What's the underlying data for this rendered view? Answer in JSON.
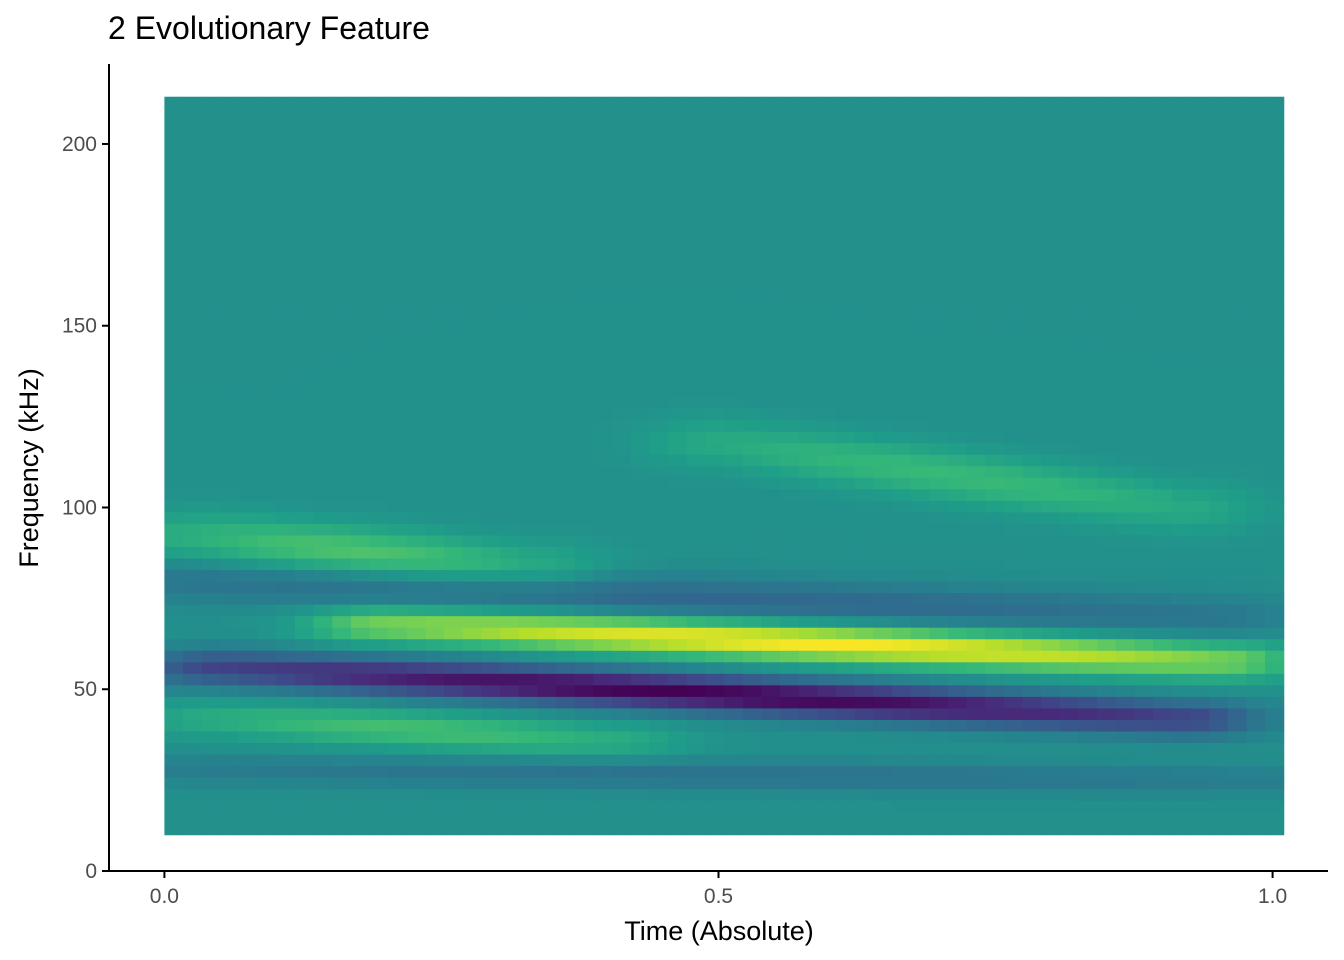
{
  "chart_data": {
    "type": "heatmap",
    "title": "2 Evolutionary Feature",
    "xlabel": "Time (Absolute)",
    "ylabel": "Frequency (kHz)",
    "xlim": [
      -0.05,
      1.05
    ],
    "ylim": [
      0,
      222
    ],
    "x_ticks": [
      0.0,
      0.5,
      1.0
    ],
    "x_tick_labels": [
      "0.0",
      "0.5",
      "1.0"
    ],
    "y_ticks": [
      0,
      50,
      100,
      150,
      200
    ],
    "y_tick_labels": [
      "0",
      "50",
      "100",
      "150",
      "200"
    ],
    "x_range": [
      0,
      1.01
    ],
    "y_range": [
      10,
      213
    ],
    "colormap": "viridis",
    "value_range": [
      -1,
      1
    ],
    "grid": false,
    "legend": "none",
    "features": [
      {
        "name": "",
        "type": "ridge",
        "freq_start": 92,
        "freq_end": 83,
        "t_start": 0.03,
        "t_end": 0.33,
        "width": 7,
        "amp": 0.45
      },
      {
        "name": "",
        "type": "ridge",
        "freq_start": 68,
        "freq_end": 58,
        "t_start": 0.2,
        "t_end": 0.95,
        "width": 5,
        "amp": 1.0
      },
      {
        "name": "",
        "type": "trough",
        "freq_start": 56,
        "freq_end": 42,
        "t_start": 0.05,
        "t_end": 0.92,
        "width": 5,
        "amp": -1.0
      },
      {
        "name": "",
        "type": "trough",
        "freq_start": 80,
        "freq_end": 70,
        "t_start": 0.0,
        "t_end": 0.95,
        "width": 6,
        "amp": -0.35
      },
      {
        "name": "",
        "type": "ridge",
        "freq_start": 42,
        "freq_end": 36,
        "t_start": 0.05,
        "t_end": 0.4,
        "width": 5,
        "amp": 0.4
      },
      {
        "name": "",
        "type": "trough",
        "freq_start": 28,
        "freq_end": 25,
        "t_start": 0.0,
        "t_end": 1.0,
        "width": 4,
        "amp": -0.25
      },
      {
        "name": "",
        "type": "ridge",
        "freq_start": 118,
        "freq_end": 100,
        "t_start": 0.5,
        "t_end": 0.92,
        "width": 7,
        "amp": 0.35
      }
    ],
    "colors": {
      "background_tile": "#21908d",
      "axis": "#000000",
      "tick_label": "#4d4d4d"
    }
  }
}
